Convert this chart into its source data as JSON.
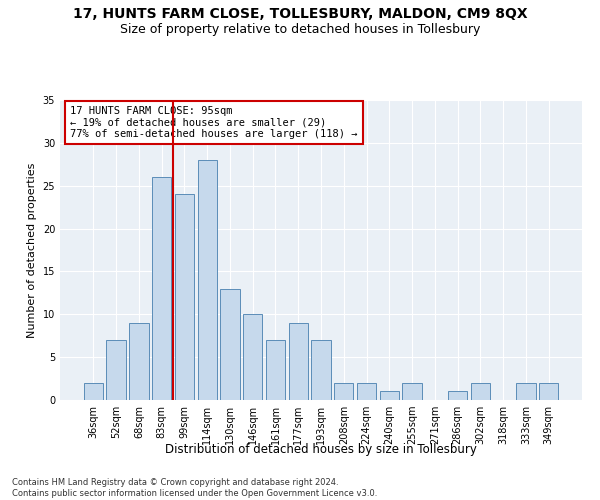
{
  "title": "17, HUNTS FARM CLOSE, TOLLESBURY, MALDON, CM9 8QX",
  "subtitle": "Size of property relative to detached houses in Tollesbury",
  "xlabel": "Distribution of detached houses by size in Tollesbury",
  "ylabel": "Number of detached properties",
  "bar_labels": [
    "36sqm",
    "52sqm",
    "68sqm",
    "83sqm",
    "99sqm",
    "114sqm",
    "130sqm",
    "146sqm",
    "161sqm",
    "177sqm",
    "193sqm",
    "208sqm",
    "224sqm",
    "240sqm",
    "255sqm",
    "271sqm",
    "286sqm",
    "302sqm",
    "318sqm",
    "333sqm",
    "349sqm"
  ],
  "bar_heights": [
    2,
    7,
    9,
    26,
    24,
    28,
    13,
    10,
    7,
    9,
    7,
    2,
    2,
    1,
    2,
    0,
    1,
    2,
    0,
    2,
    2
  ],
  "bar_color": "#c6d9ec",
  "bar_edgecolor": "#5b8db8",
  "vline_color": "#cc0000",
  "vline_x_index": 4,
  "annotation_text": "17 HUNTS FARM CLOSE: 95sqm\n← 19% of detached houses are smaller (29)\n77% of semi-detached houses are larger (118) →",
  "annotation_box_color": "white",
  "annotation_box_edgecolor": "#cc0000",
  "ylim": [
    0,
    35
  ],
  "yticks": [
    0,
    5,
    10,
    15,
    20,
    25,
    30,
    35
  ],
  "bg_color": "#eaf0f6",
  "footnote": "Contains HM Land Registry data © Crown copyright and database right 2024.\nContains public sector information licensed under the Open Government Licence v3.0.",
  "title_fontsize": 10,
  "subtitle_fontsize": 9,
  "xlabel_fontsize": 8.5,
  "ylabel_fontsize": 8,
  "tick_fontsize": 7,
  "annot_fontsize": 7.5,
  "footnote_fontsize": 6
}
